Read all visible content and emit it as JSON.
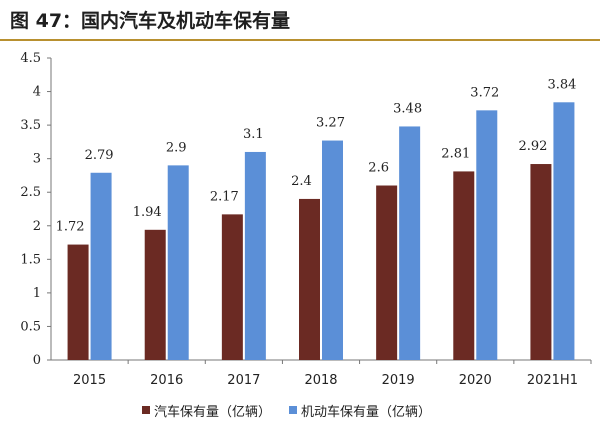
{
  "header": {
    "title": "图 47：国内汽车及机动车保有量"
  },
  "colors": {
    "series_car": "#6b2a23",
    "series_motor": "#5b8fd7",
    "title_rule": "#b8902f",
    "axis": "#777777"
  },
  "chart_data": {
    "type": "bar",
    "title": "",
    "xlabel": "",
    "ylabel": "",
    "categories": [
      "2015",
      "2016",
      "2017",
      "2018",
      "2019",
      "2020",
      "2021H1"
    ],
    "series": [
      {
        "name": "汽车保有量（亿辆）",
        "values": [
          1.72,
          1.94,
          2.17,
          2.4,
          2.6,
          2.81,
          2.92
        ],
        "labels": [
          "1.72",
          "1.94",
          "2.17",
          "2.4",
          "2.6",
          "2.81",
          "2.92"
        ]
      },
      {
        "name": "机动车保有量（亿辆）",
        "values": [
          2.79,
          2.9,
          3.1,
          3.27,
          3.48,
          3.72,
          3.84
        ],
        "labels": [
          "2.79",
          "2.9",
          "3.1",
          "3.27",
          "3.48",
          "3.72",
          "3.84"
        ]
      }
    ],
    "ylim": [
      0,
      4.5
    ],
    "yticks": [
      "0",
      "0.5",
      "1",
      "1.5",
      "2",
      "2.5",
      "3",
      "3.5",
      "4",
      "4.5"
    ],
    "grid": false,
    "legend_position": "bottom"
  }
}
